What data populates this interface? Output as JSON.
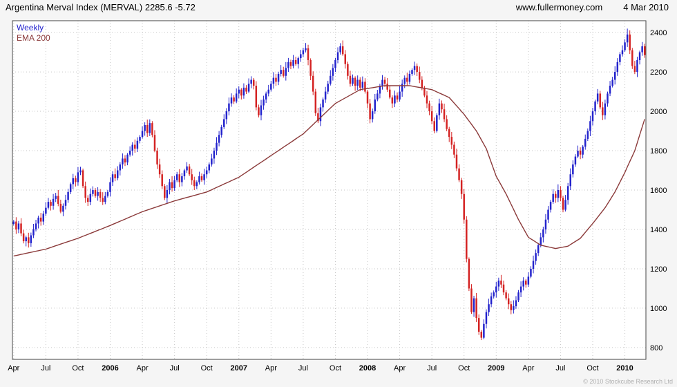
{
  "header": {
    "title": "Argentina Merval Index (MERVAL) 2285.6 -5.72",
    "website": "www.fullermoney.com",
    "date": "4 Mar 2010"
  },
  "legend": {
    "weekly": "Weekly",
    "ema": "EMA 200"
  },
  "footer": {
    "copyright": "© 2010 Stockcube Research Ltd"
  },
  "colors": {
    "up": "#2222cc",
    "down": "#d42222",
    "ema": "#8b3a3a",
    "grid": "#c6c6c6",
    "border": "#444444",
    "text": "#000000",
    "copyright": "#b0b0b0"
  },
  "chart_data": {
    "type": "candlestick",
    "title": "Argentina Merval Index (MERVAL)",
    "timeframe": "Weekly",
    "overlay": "EMA 200",
    "last_price": 2285.6,
    "change": -5.72,
    "ylim": [
      740,
      2460
    ],
    "yticks": [
      800,
      1000,
      1200,
      1400,
      1600,
      1800,
      2000,
      2200,
      2400
    ],
    "xticks": [
      {
        "label": "Apr",
        "index": 0
      },
      {
        "label": "Jul",
        "index": 13
      },
      {
        "label": "Oct",
        "index": 26
      },
      {
        "label": "2006",
        "index": 39
      },
      {
        "label": "Apr",
        "index": 52
      },
      {
        "label": "Jul",
        "index": 65
      },
      {
        "label": "Oct",
        "index": 78
      },
      {
        "label": "2007",
        "index": 91
      },
      {
        "label": "Apr",
        "index": 104
      },
      {
        "label": "Jul",
        "index": 117
      },
      {
        "label": "Oct",
        "index": 130
      },
      {
        "label": "2008",
        "index": 143
      },
      {
        "label": "Apr",
        "index": 156
      },
      {
        "label": "Jul",
        "index": 169
      },
      {
        "label": "Oct",
        "index": 182
      },
      {
        "label": "2009",
        "index": 195
      },
      {
        "label": "Apr",
        "index": 208
      },
      {
        "label": "Jul",
        "index": 221
      },
      {
        "label": "Oct",
        "index": 234
      },
      {
        "label": "2010",
        "index": 247
      }
    ],
    "weekly_closes": [
      1440,
      1400,
      1430,
      1380,
      1340,
      1360,
      1330,
      1370,
      1400,
      1430,
      1460,
      1440,
      1480,
      1510,
      1540,
      1520,
      1555,
      1570,
      1530,
      1490,
      1520,
      1550,
      1590,
      1630,
      1660,
      1640,
      1690,
      1700,
      1620,
      1560,
      1540,
      1580,
      1600,
      1570,
      1590,
      1560,
      1540,
      1570,
      1590,
      1640,
      1680,
      1660,
      1700,
      1730,
      1760,
      1740,
      1780,
      1800,
      1830,
      1810,
      1850,
      1870,
      1900,
      1930,
      1890,
      1940,
      1880,
      1800,
      1730,
      1680,
      1620,
      1560,
      1600,
      1640,
      1610,
      1650,
      1680,
      1640,
      1670,
      1700,
      1720,
      1680,
      1650,
      1620,
      1640,
      1670,
      1650,
      1680,
      1700,
      1730,
      1760,
      1800,
      1840,
      1880,
      1920,
      1960,
      2000,
      2040,
      2070,
      2050,
      2090,
      2110,
      2080,
      2120,
      2100,
      2140,
      2160,
      2130,
      2020,
      1980,
      2030,
      2060,
      2090,
      2110,
      2140,
      2170,
      2150,
      2190,
      2210,
      2180,
      2220,
      2250,
      2230,
      2260,
      2240,
      2270,
      2290,
      2310,
      2320,
      2260,
      2180,
      2100,
      1990,
      1950,
      2020,
      2060,
      2100,
      2140,
      2180,
      2220,
      2260,
      2300,
      2330,
      2290,
      2240,
      2180,
      2140,
      2170,
      2130,
      2160,
      2120,
      2150,
      2100,
      2040,
      1960,
      2000,
      2060,
      2090,
      2130,
      2160,
      2140,
      2110,
      2070,
      2040,
      2080,
      2060,
      2100,
      2140,
      2170,
      2150,
      2190,
      2210,
      2230,
      2200,
      2160,
      2120,
      2080,
      2040,
      2000,
      1950,
      1900,
      1980,
      2040,
      2010,
      1960,
      1910,
      1870,
      1830,
      1780,
      1710,
      1650,
      1580,
      1450,
      1250,
      1100,
      980,
      1050,
      950,
      880,
      850,
      920,
      980,
      1020,
      1060,
      1080,
      1110,
      1140,
      1120,
      1080,
      1050,
      1020,
      990,
      1010,
      1040,
      1080,
      1110,
      1140,
      1120,
      1160,
      1200,
      1240,
      1280,
      1320,
      1360,
      1400,
      1450,
      1500,
      1540,
      1580,
      1560,
      1600,
      1560,
      1500,
      1550,
      1620,
      1680,
      1730,
      1770,
      1800,
      1780,
      1820,
      1860,
      1900,
      1950,
      2000,
      2050,
      2090,
      2020,
      1980,
      2040,
      2090,
      2130,
      2160,
      2200,
      2250,
      2290,
      2310,
      2350,
      2390,
      2310,
      2230,
      2200,
      2260,
      2300,
      2330,
      2285.6
    ],
    "ema_anchors": [
      [
        0,
        1265
      ],
      [
        13,
        1300
      ],
      [
        26,
        1355
      ],
      [
        39,
        1420
      ],
      [
        52,
        1490
      ],
      [
        65,
        1545
      ],
      [
        78,
        1590
      ],
      [
        91,
        1665
      ],
      [
        104,
        1775
      ],
      [
        117,
        1885
      ],
      [
        130,
        2040
      ],
      [
        140,
        2110
      ],
      [
        150,
        2130
      ],
      [
        160,
        2130
      ],
      [
        169,
        2110
      ],
      [
        176,
        2070
      ],
      [
        182,
        1985
      ],
      [
        187,
        1900
      ],
      [
        191,
        1810
      ],
      [
        195,
        1670
      ],
      [
        199,
        1580
      ],
      [
        204,
        1450
      ],
      [
        208,
        1360
      ],
      [
        213,
        1320
      ],
      [
        219,
        1303
      ],
      [
        224,
        1315
      ],
      [
        229,
        1355
      ],
      [
        234,
        1430
      ],
      [
        239,
        1510
      ],
      [
        243,
        1590
      ],
      [
        247,
        1690
      ],
      [
        251,
        1800
      ],
      [
        255,
        1960
      ]
    ]
  }
}
